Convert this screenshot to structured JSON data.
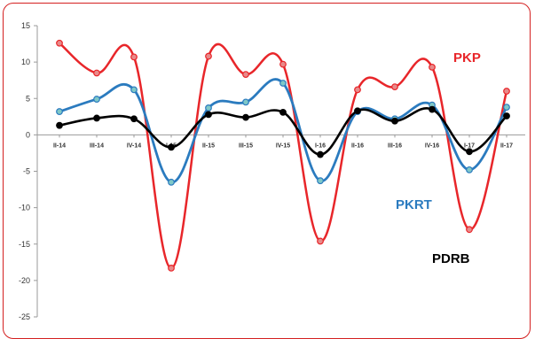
{
  "chart_data": {
    "type": "line",
    "title": "",
    "xlabel": "",
    "ylabel": "",
    "categories": [
      "II-14",
      "III-14",
      "IV-14",
      "I-15",
      "II-15",
      "III-15",
      "IV-15",
      "I-16",
      "II-16",
      "III-16",
      "IV-16",
      "I-17",
      "II-17"
    ],
    "ylim": [
      -25,
      15
    ],
    "yticks": [
      15,
      10,
      5,
      0,
      -5,
      -10,
      -15,
      -20,
      -25
    ],
    "grid": false,
    "legend": "inline-labels",
    "series": [
      {
        "name": "PKP",
        "color": "#e8262a",
        "values": [
          12.6,
          8.5,
          10.7,
          -18.3,
          10.8,
          8.3,
          9.7,
          -14.6,
          6.2,
          6.6,
          9.3,
          -13.0,
          6.0
        ]
      },
      {
        "name": "PKRT",
        "color": "#2b7bbf",
        "values": [
          3.2,
          4.9,
          6.2,
          -6.5,
          3.7,
          4.5,
          7.1,
          -6.3,
          3.2,
          2.2,
          4.1,
          -4.8,
          3.8
        ]
      },
      {
        "name": "PDRB",
        "color": "#000000",
        "values": [
          1.3,
          2.3,
          2.2,
          -1.7,
          2.8,
          2.4,
          3.1,
          -2.7,
          3.3,
          1.9,
          3.5,
          -2.3,
          2.6
        ]
      }
    ]
  }
}
